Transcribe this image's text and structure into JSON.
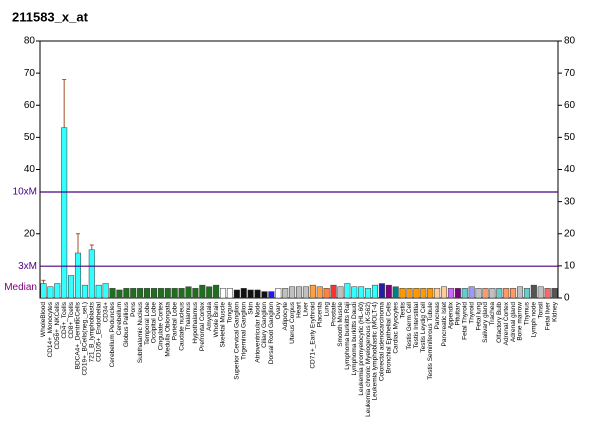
{
  "chart_data": {
    "type": "bar",
    "title": "211583_x_at",
    "categories": [
      "WholeBlood",
      "CD14+_Monocytes",
      "CD56+_NKCells",
      "CD4+_Tcells",
      "CD8+_Tcells",
      "BDCA4+_DentriticCells",
      "CD19+_BCells(neg._sel.)",
      "721_B_lymphoblasts",
      "CD105+_Endothelial",
      "CD34+",
      "Cerebellum Peduncles",
      "Cerebellum",
      "Globus Pallidus",
      "Pons",
      "Subthalamic Nucleus",
      "Temporal Lobe",
      "Occipital Lobe",
      "Cingulate Cortex",
      "Medulla Oblongata",
      "Parietal Lobe",
      "Caudate nucleus",
      "Thalamus",
      "Hypothalamus",
      "Prefrontal Cortex",
      "Amygdala",
      "Whole Brain",
      "Skeletal Muscle",
      "Tongue",
      "Superior Cervical Ganglion",
      "Trigeminal Ganglion",
      "Skin",
      "Atrioventricular Node",
      "Ciliary Ganglion",
      "Dorsal Root Ganglion",
      "Ovary",
      "Adipocyte",
      "Uterus Corpus",
      "Heart",
      "Liver",
      "CD71+_Early Erythroid",
      "Placenta",
      "Lung",
      "Prostate",
      "Smooth Muscle",
      "Lymphoma burkitts Raji",
      "Lymphoma burkitts Daudi",
      "Leukemia promyelocytic (HL-60)",
      "Leukemia chronic Myelogenous (K-562)",
      "Leukemia lymphoblastic (MOLT-4)",
      "Colorectal adenocarcinoma",
      "Bronchial Epithelial Cells",
      "Cardiac Myocytes",
      "Testis",
      "Testis Germ Cell",
      "Testis Interstitial",
      "Testis Leydig Cell",
      "Testis Seminiferous Tubule",
      "Pancreas",
      "Pancreatic Islet",
      "Appendix",
      "Pituitary",
      "Fetal Thyroid",
      "Thyroid",
      "Fetal lung",
      "Salivary gland",
      "Trachea",
      "Olfactory Bulb",
      "Adrenal Cortex",
      "Adrenal gland",
      "Bone marrow",
      "Thymus",
      "Lymph node",
      "Tonsil",
      "Fetal liver",
      "Kidney"
    ],
    "values": [
      4.5,
      3.5,
      4.5,
      53,
      7,
      14,
      4,
      15,
      4,
      4.5,
      3,
      2.5,
      3,
      3,
      3,
      3,
      3,
      3,
      3,
      3,
      3,
      3.5,
      3,
      4,
      3.5,
      4,
      3,
      3,
      2.5,
      3,
      2.5,
      2.5,
      2,
      2,
      3,
      3,
      3.5,
      3.5,
      3.5,
      4,
      3.5,
      3,
      4,
      3.5,
      4.5,
      3.5,
      3.5,
      3,
      4,
      4.5,
      4,
      3.5,
      3,
      3,
      3,
      3,
      3,
      3,
      3.5,
      3,
      3,
      3,
      3.5,
      3,
      3,
      3,
      3,
      3,
      3,
      3.5,
      3,
      4,
      3.5,
      3,
      3
    ],
    "errors": [
      1,
      null,
      null,
      15,
      null,
      6,
      null,
      1.5,
      null,
      null,
      null,
      null,
      null,
      null,
      null,
      null,
      null,
      null,
      null,
      null,
      null,
      null,
      null,
      null,
      null,
      null,
      null,
      null,
      null,
      null,
      null,
      null,
      null,
      null,
      null,
      null,
      null,
      null,
      null,
      null,
      null,
      null,
      null,
      null,
      null,
      null,
      null,
      null,
      null,
      null,
      null,
      null,
      null,
      null,
      null,
      null,
      null,
      null,
      null,
      null,
      null,
      null,
      null,
      null,
      null,
      null,
      null,
      null,
      null,
      null,
      null,
      null,
      null,
      null,
      null
    ],
    "colors": [
      "#33ffff",
      "#33ffff",
      "#33ffff",
      "#33ffff",
      "#33ffff",
      "#33ffff",
      "#33ffff",
      "#33ffff",
      "#33ffff",
      "#33ffff",
      "#1f6f1f",
      "#1f6f1f",
      "#1f6f1f",
      "#1f6f1f",
      "#1f6f1f",
      "#1f6f1f",
      "#1f6f1f",
      "#1f6f1f",
      "#1f6f1f",
      "#1f6f1f",
      "#1f6f1f",
      "#1f6f1f",
      "#1f6f1f",
      "#1f6f1f",
      "#1f6f1f",
      "#1f6f1f",
      "#ffffff",
      "#ffffff",
      "#111111",
      "#111111",
      "#111111",
      "#111111",
      "#111111",
      "#1a1aff",
      "#ffffff",
      "#c0c0c0",
      "#c0c0c0",
      "#c0c0c0",
      "#c0c0c0",
      "#ffa040",
      "#ffa040",
      "#ff8040",
      "#ff3030",
      "#c0c0c0",
      "#33ffff",
      "#33ffff",
      "#33ffff",
      "#33ffff",
      "#33ffff",
      "#2020a0",
      "#800080",
      "#008080",
      "#ff9900",
      "#ff9900",
      "#ff9900",
      "#ff9900",
      "#ff9900",
      "#ffcc99",
      "#ffcc99",
      "#cc66ff",
      "#800080",
      "#66cccc",
      "#9999ff",
      "#c0c0c0",
      "#ff9966",
      "#c0c0c0",
      "#66cccc",
      "#ff9966",
      "#ff9966",
      "#c0c0c0",
      "#66cccc",
      "#555555",
      "#c0c0c0",
      "#ff6666",
      "#555555"
    ],
    "error_color": "#a0522d",
    "ylim": [
      0,
      80
    ],
    "yticks": [
      20,
      40,
      50,
      60,
      70,
      80
    ],
    "y2lim": [
      0,
      80
    ],
    "y2ticks": [
      0,
      10,
      20,
      30,
      40,
      50,
      60,
      70,
      80
    ],
    "reference_lines": [
      {
        "value": 33,
        "label": "10xM",
        "color": "#4b0082",
        "line": true
      },
      {
        "value": 9.9,
        "label": "3xM",
        "color": "#4b0082",
        "line": true
      },
      {
        "value": 3.3,
        "label": "Median",
        "color": "#800080",
        "line": false
      }
    ]
  }
}
